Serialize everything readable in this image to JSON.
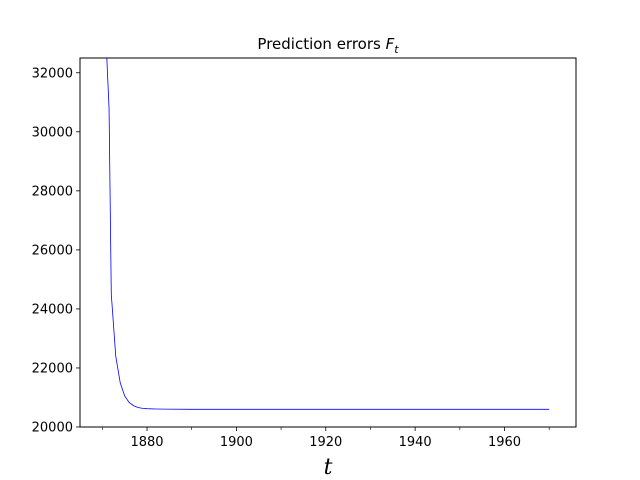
{
  "chart_data": {
    "type": "line",
    "title": "Prediction errors ",
    "title_symbol": "F",
    "title_subscript": "t",
    "xlabel": "t",
    "ylabel": "",
    "xlim": [
      1865,
      1976
    ],
    "ylim": [
      20000,
      32500
    ],
    "x_major_ticks": [
      1880,
      1900,
      1920,
      1940,
      1960
    ],
    "x_minor_ticks": [
      1870,
      1890,
      1910,
      1930,
      1950,
      1970
    ],
    "y_ticks": [
      20000,
      22000,
      24000,
      26000,
      28000,
      30000,
      32000
    ],
    "grid": false,
    "legend": "none",
    "series": [
      {
        "color": "#0000ff",
        "x": [
          1871,
          1871.5,
          1872,
          1873,
          1874,
          1875,
          1876,
          1877,
          1878,
          1879,
          1880,
          1882,
          1884,
          1890,
          1900,
          1920,
          1940,
          1960,
          1970
        ],
        "y": [
          32500,
          30800,
          24500,
          22400,
          21500,
          21050,
          20830,
          20720,
          20660,
          20630,
          20620,
          20610,
          20605,
          20600,
          20600,
          20600,
          20600,
          20600,
          20600
        ]
      }
    ]
  }
}
